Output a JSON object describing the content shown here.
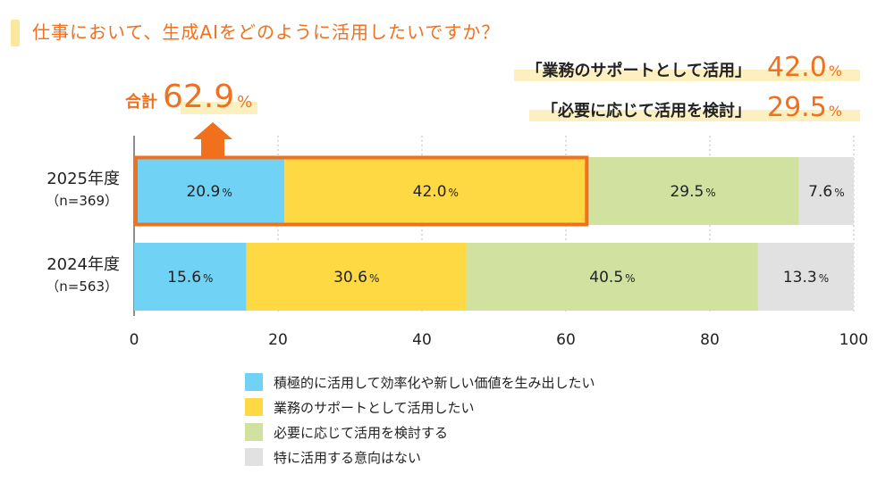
{
  "title": "仕事において、生成AIをどのように活用したいですか？",
  "callouts": [
    {
      "label": "「業務のサポートとして活用」",
      "value": "42.0",
      "unit": "%"
    },
    {
      "label": "「必要に応じて活用を検討」",
      "value": "29.5",
      "unit": "%"
    }
  ],
  "total": {
    "label": "合計",
    "value": "62.9",
    "unit": "%"
  },
  "chart_data": {
    "type": "bar",
    "orientation": "horizontal",
    "stacked": true,
    "categories": [
      {
        "year": "2025年度",
        "n": "（n=369）"
      },
      {
        "year": "2024年度",
        "n": "（n=563）"
      }
    ],
    "series": [
      {
        "name": "積極的に活用して効率化や新しい価値を生み出したい",
        "color": "#70D2F4",
        "values": [
          20.9,
          15.6
        ],
        "labels": [
          "20.9",
          "15.6"
        ]
      },
      {
        "name": "業務のサポートとして活用したい",
        "color": "#FED944",
        "values": [
          42.0,
          30.6
        ],
        "labels": [
          "42.0",
          "30.6"
        ]
      },
      {
        "name": "必要に応じて活用を検討する",
        "color": "#D1E2A0",
        "values": [
          29.5,
          40.5
        ],
        "labels": [
          "29.5",
          "40.5"
        ]
      },
      {
        "name": "特に活用する意向はない",
        "color": "#E1E1E1",
        "values": [
          7.6,
          13.3
        ],
        "labels": [
          "7.6",
          "13.3"
        ]
      }
    ],
    "unit": "%",
    "xlim": [
      0,
      100
    ],
    "xticks": [
      "0",
      "20",
      "40",
      "60",
      "80",
      "100"
    ],
    "highlight": {
      "category": 0,
      "series": [
        0,
        1
      ],
      "color": "#F0701E"
    },
    "grid": true,
    "legend_position": "bottom"
  }
}
